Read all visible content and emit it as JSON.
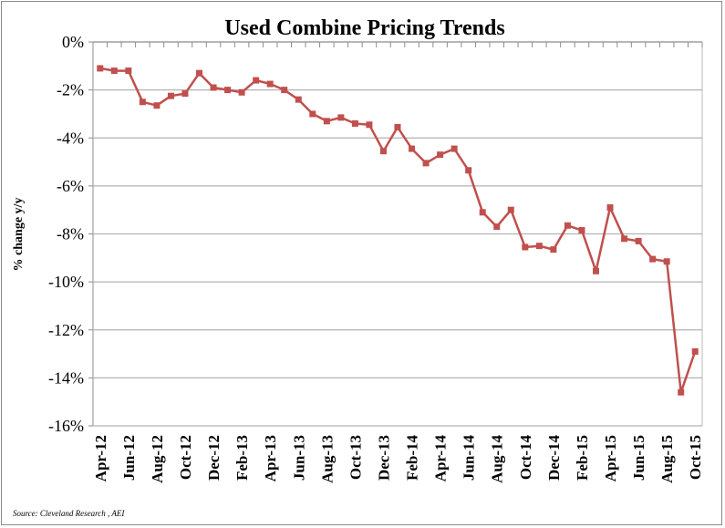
{
  "chart_data": {
    "type": "line",
    "title": "Used Combine Pricing Trends",
    "xlabel": "",
    "ylabel": "% change y/y",
    "ylim": [
      -16,
      0
    ],
    "yticks": [
      0,
      -2,
      -4,
      -6,
      -8,
      -10,
      -12,
      -14,
      -16
    ],
    "ytick_labels": [
      "0%",
      "-2%",
      "-4%",
      "-6%",
      "-8%",
      "-10%",
      "-12%",
      "-14%",
      "-16%"
    ],
    "grid": true,
    "legend": "none",
    "source": "Source: Cleveland Research , AEI",
    "x": [
      "Apr-12",
      "May-12",
      "Jun-12",
      "Jul-12",
      "Aug-12",
      "Sep-12",
      "Oct-12",
      "Nov-12",
      "Dec-12",
      "Jan-13",
      "Feb-13",
      "Mar-13",
      "Apr-13",
      "May-13",
      "Jun-13",
      "Jul-13",
      "Aug-13",
      "Sep-13",
      "Oct-13",
      "Nov-13",
      "Dec-13",
      "Jan-14",
      "Feb-14",
      "Mar-14",
      "Apr-14",
      "May-14",
      "Jun-14",
      "Jul-14",
      "Aug-14",
      "Sep-14",
      "Oct-14",
      "Nov-14",
      "Dec-14",
      "Jan-15",
      "Feb-15",
      "Mar-15",
      "Apr-15",
      "May-15",
      "Jun-15",
      "Jul-15",
      "Aug-15",
      "Sep-15",
      "Oct-15"
    ],
    "xtick_labels": [
      "Apr-12",
      "Jun-12",
      "Aug-12",
      "Oct-12",
      "Dec-12",
      "Feb-13",
      "Apr-13",
      "Jun-13",
      "Aug-13",
      "Oct-13",
      "Dec-13",
      "Feb-14",
      "Apr-14",
      "Jun-14",
      "Aug-14",
      "Oct-14",
      "Dec-14",
      "Feb-15",
      "Apr-15",
      "Jun-15",
      "Aug-15",
      "Oct-15"
    ],
    "series": [
      {
        "name": "Used Combine Pricing",
        "color": "#c0504d",
        "values": [
          -1.1,
          -1.2,
          -1.2,
          -2.5,
          -2.65,
          -2.25,
          -2.15,
          -1.3,
          -1.9,
          -2.0,
          -2.1,
          -1.6,
          -1.75,
          -2.0,
          -2.4,
          -3.0,
          -3.3,
          -3.15,
          -3.4,
          -3.45,
          -4.55,
          -3.55,
          -4.45,
          -5.05,
          -4.7,
          -4.45,
          -5.35,
          -7.1,
          -7.7,
          -7.0,
          -8.55,
          -8.5,
          -8.65,
          -7.65,
          -7.85,
          -9.55,
          -6.9,
          -8.2,
          -8.3,
          -9.05,
          -9.15,
          -14.6,
          -12.9
        ]
      }
    ]
  }
}
